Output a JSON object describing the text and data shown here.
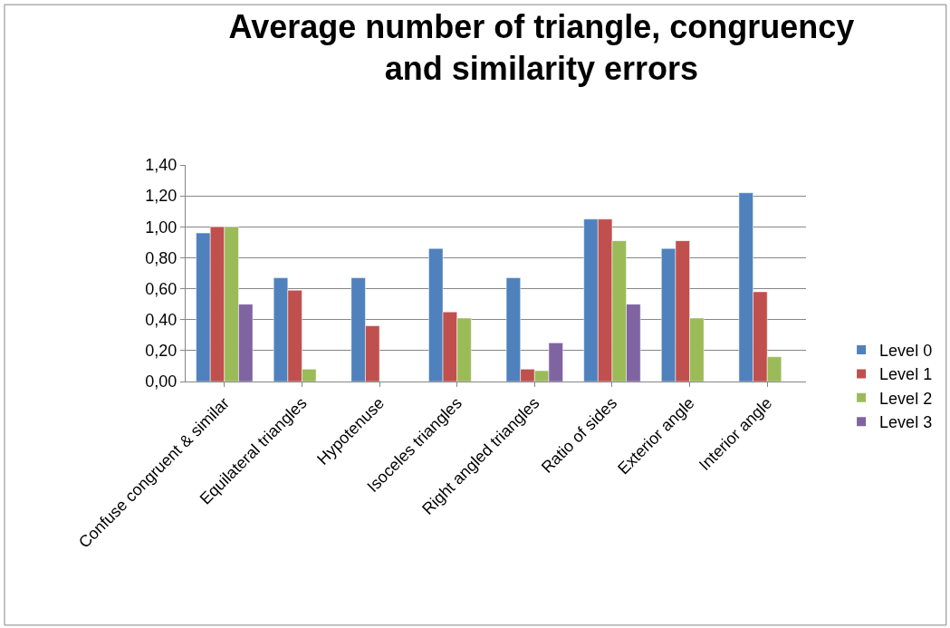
{
  "chart_data": {
    "type": "bar",
    "title": "Average number of triangle, congruency and similarity errors",
    "categories": [
      "Confuse congruent & similar",
      "Equilateral triangles",
      "Hypotenuse",
      "Isoceles triangles",
      "Right angled triangles",
      "Ratio of sides",
      "Exterior angle",
      "Interior angle"
    ],
    "series": [
      {
        "name": "Level 0",
        "color": "#4f81bd",
        "values": [
          0.96,
          0.67,
          0.67,
          0.86,
          0.67,
          1.05,
          0.86,
          1.22
        ]
      },
      {
        "name": "Level 1",
        "color": "#c0504d",
        "values": [
          1.0,
          0.59,
          0.36,
          0.45,
          0.08,
          1.05,
          0.91,
          0.58
        ]
      },
      {
        "name": "Level 2",
        "color": "#9bbb59",
        "values": [
          1.0,
          0.08,
          null,
          0.41,
          0.07,
          0.91,
          0.41,
          0.16
        ]
      },
      {
        "name": "Level 3",
        "color": "#8064a2",
        "values": [
          0.5,
          null,
          null,
          null,
          0.25,
          0.5,
          null,
          null
        ]
      }
    ],
    "ylim": [
      0,
      1.4
    ],
    "yticks": [
      {
        "value": 0,
        "label": "0,00"
      },
      {
        "value": 0.2,
        "label": "0,20"
      },
      {
        "value": 0.4,
        "label": "0,40"
      },
      {
        "value": 0.6,
        "label": "0,60"
      },
      {
        "value": 0.8,
        "label": "0,80"
      },
      {
        "value": 1.0,
        "label": "1,00"
      },
      {
        "value": 1.2,
        "label": "1,20"
      },
      {
        "value": 1.4,
        "label": "1,40"
      }
    ],
    "grid": "y",
    "legend": "right"
  }
}
